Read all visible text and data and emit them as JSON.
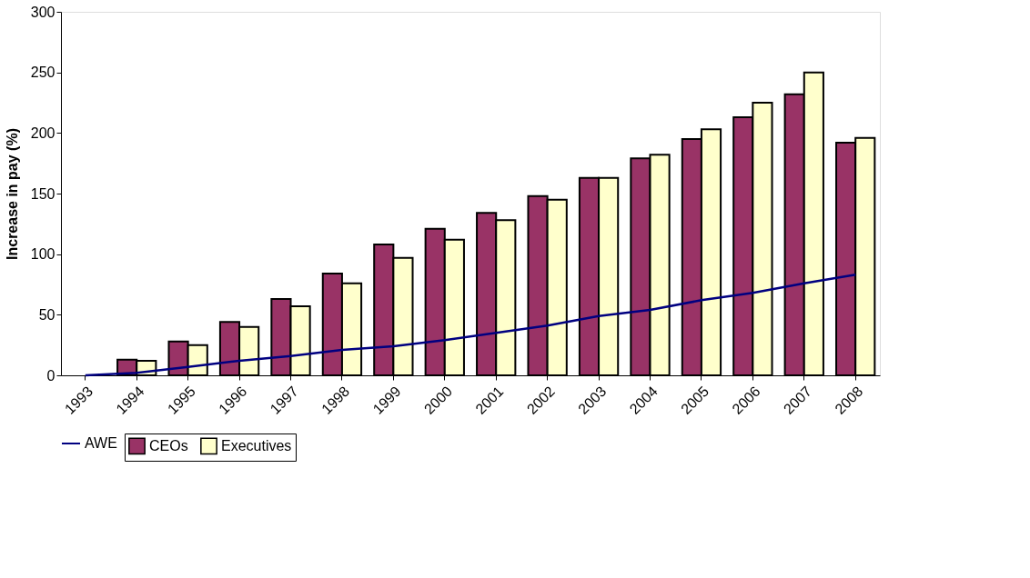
{
  "chart_data": {
    "type": "bar",
    "ylabel": "Increase in pay (%)",
    "categories": [
      "1993",
      "1994",
      "1995",
      "1996",
      "1997",
      "1998",
      "1999",
      "2000",
      "2001",
      "2002",
      "2003",
      "2004",
      "2005",
      "2006",
      "2007",
      "2008"
    ],
    "series": [
      {
        "name": "CEOs",
        "color": "#993366",
        "values": [
          null,
          13,
          28,
          44,
          63,
          84,
          108,
          121,
          134,
          148,
          163,
          179,
          195,
          213,
          232,
          192
        ]
      },
      {
        "name": "Executives",
        "color": "#ffffcc",
        "values": [
          null,
          12,
          25,
          40,
          57,
          76,
          97,
          112,
          128,
          145,
          163,
          182,
          203,
          225,
          250,
          196
        ]
      },
      {
        "name": "AWE",
        "type": "line",
        "color": "#000080",
        "values": [
          0,
          2,
          7,
          12,
          16,
          21,
          24,
          29,
          35,
          41,
          49,
          54,
          62,
          68,
          76,
          83
        ]
      }
    ],
    "ylim": [
      0,
      300
    ],
    "yticks": [
      0,
      50,
      100,
      150,
      200,
      250,
      300
    ],
    "grid": false,
    "legend": "bottom"
  }
}
